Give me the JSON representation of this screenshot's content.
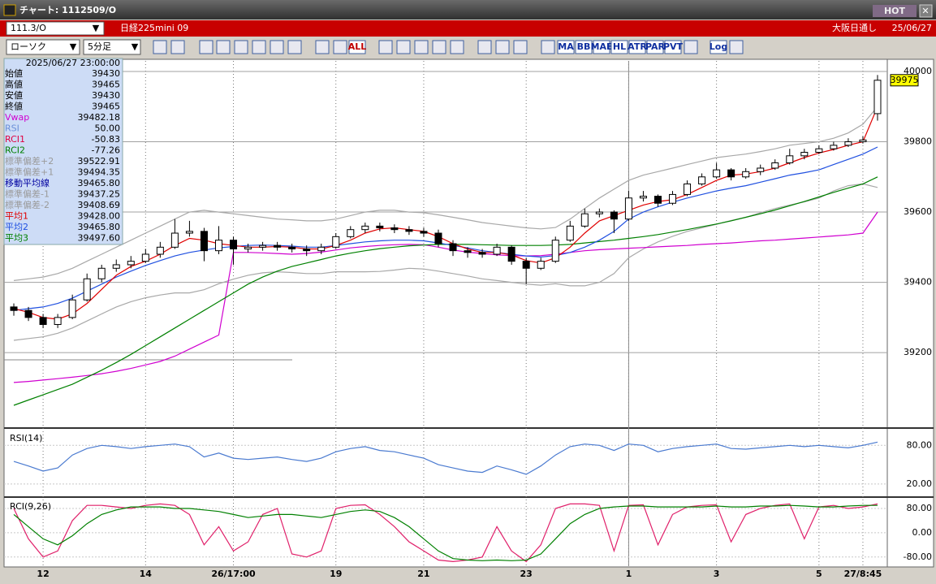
{
  "window": {
    "title": "チャート: 1112509/O",
    "hot": "HOT"
  },
  "header": {
    "symbol": "111.3/O",
    "name": "日経225mini 09",
    "session": "大阪日通し",
    "date": "25/06/27"
  },
  "toolbar": {
    "chart_style": "ローソク",
    "interval": "5分足",
    "labels": [
      "ALL",
      "MA",
      "BB",
      "MAE",
      "HL",
      "ATR",
      "PAR",
      "PVT",
      "Log"
    ]
  },
  "info_panel": {
    "datetime": "2025/06/27 23:00:00",
    "rows": [
      {
        "label": "始値",
        "value": "39430",
        "color": "#000000"
      },
      {
        "label": "高値",
        "value": "39465",
        "color": "#000000"
      },
      {
        "label": "安値",
        "value": "39430",
        "color": "#000000"
      },
      {
        "label": "終値",
        "value": "39465",
        "color": "#000000"
      },
      {
        "label": "Vwap",
        "value": "39482.18",
        "color": "#d000d0"
      },
      {
        "label": "RSI",
        "value": "50.00",
        "color": "#6a8fd8"
      },
      {
        "label": "RCI1",
        "value": "-50.83",
        "color": "#e00040"
      },
      {
        "label": "RCI2",
        "value": "-77.26",
        "color": "#008000"
      },
      {
        "label": "標準偏差+2",
        "value": "39522.91",
        "color": "#9a9a9a"
      },
      {
        "label": "標準偏差+1",
        "value": "39494.35",
        "color": "#9a9a9a"
      },
      {
        "label": "移動平均線",
        "value": "39465.80",
        "color": "#0000a0"
      },
      {
        "label": "標準偏差-1",
        "value": "39437.25",
        "color": "#9a9a9a"
      },
      {
        "label": "標準偏差-2",
        "value": "39408.69",
        "color": "#9a9a9a"
      },
      {
        "label": "平均1",
        "value": "39428.00",
        "color": "#e00000"
      },
      {
        "label": "平均2",
        "value": "39465.80",
        "color": "#2050e0"
      },
      {
        "label": "平均3",
        "value": "39497.60",
        "color": "#008000"
      }
    ]
  },
  "chart_data": [
    {
      "type": "candlestick",
      "categories": [
        null,
        null,
        "12",
        null,
        null,
        null,
        null,
        null,
        null,
        "14",
        null,
        null,
        null,
        null,
        null,
        "26/17:00",
        null,
        null,
        null,
        null,
        null,
        null,
        "19",
        null,
        null,
        null,
        null,
        null,
        "21",
        null,
        null,
        null,
        null,
        null,
        null,
        "23",
        null,
        null,
        null,
        null,
        null,
        null,
        "1",
        null,
        null,
        null,
        null,
        null,
        "3",
        null,
        null,
        null,
        null,
        null,
        null,
        "5",
        null,
        null,
        "27/8:45",
        null
      ],
      "open": [
        39330,
        39320,
        39300,
        39280,
        39300,
        39350,
        39410,
        39440,
        39450,
        39460,
        39480,
        39500,
        39540,
        39545,
        39490,
        39520,
        39495,
        39500,
        39505,
        39500,
        39495,
        39490,
        39500,
        39530,
        39550,
        39560,
        39555,
        39550,
        39545,
        39540,
        39510,
        39490,
        39485,
        39480,
        39500,
        39460,
        39440,
        39460,
        39520,
        39560,
        39595,
        39600,
        39580,
        39640,
        39645,
        39625,
        39650,
        39680,
        39700,
        39720,
        39700,
        39715,
        39725,
        39740,
        39760,
        39770,
        39780,
        39790,
        39800,
        39880
      ],
      "high": [
        39340,
        39330,
        39310,
        39310,
        39365,
        39425,
        39450,
        39465,
        39475,
        39495,
        39515,
        39580,
        39575,
        39555,
        39560,
        39530,
        39510,
        39515,
        39515,
        39510,
        39505,
        39510,
        39540,
        39560,
        39570,
        39570,
        39565,
        39560,
        39555,
        39550,
        39520,
        39500,
        39495,
        39510,
        39505,
        39470,
        39470,
        39530,
        39575,
        39610,
        39610,
        39605,
        39660,
        39660,
        39650,
        39660,
        39690,
        39710,
        39740,
        39725,
        39725,
        39735,
        39750,
        39780,
        39780,
        39790,
        39800,
        39810,
        39815,
        39990
      ],
      "low": [
        39305,
        39290,
        39270,
        39270,
        39295,
        39345,
        39400,
        39430,
        39440,
        39455,
        39470,
        39495,
        39530,
        39460,
        39480,
        39450,
        39485,
        39490,
        39490,
        39485,
        39475,
        39480,
        39495,
        39525,
        39540,
        39545,
        39540,
        39535,
        39530,
        39500,
        39475,
        39470,
        39470,
        39475,
        39450,
        39395,
        39435,
        39455,
        39515,
        39555,
        39585,
        39540,
        39575,
        39630,
        39615,
        39620,
        39645,
        39675,
        39695,
        39690,
        39695,
        39705,
        39720,
        39735,
        39750,
        39765,
        39775,
        39785,
        39795,
        39860
      ],
      "close": [
        39320,
        39300,
        39280,
        39300,
        39350,
        39410,
        39440,
        39450,
        39460,
        39480,
        39500,
        39540,
        39545,
        39490,
        39520,
        39495,
        39500,
        39505,
        39500,
        39495,
        39490,
        39500,
        39530,
        39550,
        39560,
        39555,
        39550,
        39545,
        39540,
        39510,
        39490,
        39485,
        39480,
        39500,
        39460,
        39440,
        39460,
        39520,
        39560,
        39595,
        39600,
        39580,
        39640,
        39645,
        39625,
        39650,
        39680,
        39700,
        39720,
        39700,
        39715,
        39725,
        39740,
        39760,
        39770,
        39780,
        39790,
        39800,
        39805,
        39975
      ],
      "overlays": [
        {
          "color": "#a8a8a8",
          "values": [
            39405,
            39410,
            39415,
            39425,
            39440,
            39460,
            39480,
            39500,
            39520,
            39540,
            39560,
            39580,
            39600,
            39605,
            39600,
            39595,
            39590,
            39585,
            39580,
            39578,
            39575,
            39575,
            39580,
            39590,
            39600,
            39605,
            39605,
            39600,
            39598,
            39592,
            39585,
            39578,
            39570,
            39565,
            39560,
            39555,
            39552,
            39556,
            39580,
            39610,
            39640,
            39665,
            39690,
            39705,
            39715,
            39725,
            39735,
            39745,
            39755,
            39760,
            39765,
            39772,
            39780,
            39790,
            39795,
            39800,
            39810,
            39825,
            39850,
            39900
          ]
        },
        {
          "color": "#a8a8a8",
          "values": [
            39235,
            39240,
            39245,
            39255,
            39270,
            39290,
            39310,
            39330,
            39345,
            39356,
            39364,
            39370,
            39370,
            39379,
            39396,
            39409,
            39420,
            39427,
            39430,
            39428,
            39425,
            39425,
            39430,
            39430,
            39430,
            39431,
            39435,
            39440,
            39438,
            39432,
            39425,
            39418,
            39410,
            39405,
            39400,
            39395,
            39392,
            39396,
            39390,
            39390,
            39400,
            39425,
            39470,
            39495,
            39515,
            39531,
            39545,
            39555,
            39565,
            39576,
            39585,
            39598,
            39610,
            39620,
            39629,
            39640,
            39660,
            39675,
            39680,
            39670
          ]
        },
        {
          "color": "#d000d0",
          "values": [
            39115,
            39118,
            39122,
            39126,
            39130,
            39135,
            39140,
            39147,
            39155,
            39165,
            39175,
            39190,
            39210,
            39230,
            39250,
            39485,
            39485,
            39484,
            39482,
            39480,
            39482,
            39486,
            39492,
            39498,
            39502,
            39505,
            39507,
            39508,
            39507,
            39500,
            39492,
            39486,
            39482,
            39478,
            39476,
            39475,
            39476,
            39480,
            39485,
            39490,
            39493,
            39495,
            39497,
            39499,
            39501,
            39503,
            39505,
            39508,
            39510,
            39512,
            39515,
            39518,
            39520,
            39523,
            39526,
            39529,
            39532,
            39535,
            39540,
            39600
          ]
        },
        {
          "color": "#008000",
          "values": [
            39050,
            39065,
            39080,
            39095,
            39110,
            39130,
            39150,
            39172,
            39195,
            39220,
            39245,
            39270,
            39295,
            39320,
            39345,
            39370,
            39395,
            39415,
            39432,
            39445,
            39455,
            39465,
            39475,
            39483,
            39490,
            39496,
            39500,
            39504,
            39506,
            39508,
            39508,
            39508,
            39507,
            39506,
            39505,
            39505,
            39505,
            39506,
            39508,
            39512,
            39516,
            39520,
            39525,
            39530,
            39536,
            39543,
            39550,
            39558,
            39566,
            39575,
            39585,
            39595,
            39606,
            39618,
            39630,
            39643,
            39656,
            39668,
            39680,
            39700
          ]
        },
        {
          "color": "#2050e0",
          "values": [
            39320,
            39325,
            39330,
            39340,
            39355,
            39375,
            39395,
            39415,
            39432,
            39448,
            39462,
            39475,
            39485,
            39492,
            39498,
            39502,
            39505,
            39506,
            39505,
            39503,
            39500,
            39500,
            39505,
            39510,
            39515,
            39518,
            39520,
            39520,
            39518,
            39512,
            39505,
            39498,
            39490,
            39485,
            39480,
            39475,
            39472,
            39476,
            39485,
            39500,
            39520,
            39545,
            39580,
            39600,
            39615,
            39628,
            39640,
            39650,
            39660,
            39668,
            39675,
            39685,
            39695,
            39705,
            39712,
            39720,
            39735,
            39750,
            39765,
            39785
          ]
        },
        {
          "color": "#e00000",
          "values": [
            39325,
            39315,
            39300,
            39295,
            39310,
            39340,
            39380,
            39420,
            39445,
            39460,
            39480,
            39505,
            39525,
            39520,
            39510,
            39505,
            39500,
            39500,
            39502,
            39500,
            39495,
            39495,
            39505,
            39520,
            39540,
            39552,
            39555,
            39550,
            39545,
            39530,
            39510,
            39495,
            39485,
            39485,
            39478,
            39462,
            39455,
            39470,
            39500,
            39540,
            39575,
            39590,
            39605,
            39620,
            39630,
            39635,
            39650,
            39670,
            39690,
            39705,
            39708,
            39715,
            39725,
            39740,
            39755,
            39768,
            39778,
            39790,
            39800,
            39900
          ]
        }
      ],
      "ylim": [
        38990,
        40030
      ],
      "yticks": [
        39200,
        39400,
        39600,
        39800,
        40000
      ],
      "grid": true
    },
    {
      "type": "line",
      "title": "RSI(14)",
      "series": [
        {
          "color": "#4a7ad0",
          "values": [
            55,
            48,
            40,
            45,
            65,
            75,
            80,
            78,
            75,
            78,
            80,
            82,
            78,
            62,
            68,
            60,
            58,
            60,
            62,
            58,
            55,
            60,
            70,
            75,
            78,
            72,
            70,
            65,
            60,
            50,
            45,
            40,
            38,
            48,
            42,
            35,
            48,
            65,
            78,
            82,
            80,
            72,
            82,
            80,
            70,
            75,
            78,
            80,
            82,
            75,
            74,
            76,
            78,
            80,
            78,
            80,
            78,
            76,
            80,
            85
          ]
        }
      ],
      "ylim": [
        1,
        103
      ],
      "yticks": [
        {
          "value": 80,
          "label": "80.00"
        },
        {
          "value": 20,
          "label": "20.00"
        }
      ],
      "grid": true
    },
    {
      "type": "line",
      "title": "RCI(9,26)",
      "series": [
        {
          "color": "#e0206a",
          "values": [
            80,
            -20,
            -80,
            -60,
            40,
            90,
            90,
            85,
            80,
            90,
            95,
            90,
            60,
            -40,
            20,
            -60,
            -30,
            60,
            80,
            -70,
            -80,
            -60,
            80,
            90,
            92,
            60,
            20,
            -30,
            -60,
            -90,
            -95,
            -90,
            -80,
            20,
            -60,
            -95,
            -40,
            80,
            95,
            95,
            90,
            -60,
            90,
            92,
            -40,
            60,
            85,
            90,
            92,
            -30,
            60,
            80,
            90,
            95,
            -20,
            85,
            90,
            80,
            85,
            95
          ]
        },
        {
          "color": "#008000",
          "values": [
            60,
            20,
            -20,
            -40,
            -10,
            30,
            60,
            75,
            85,
            85,
            85,
            80,
            80,
            75,
            70,
            60,
            50,
            55,
            60,
            60,
            55,
            50,
            60,
            70,
            75,
            70,
            50,
            20,
            -20,
            -60,
            -85,
            -90,
            -92,
            -90,
            -92,
            -90,
            -70,
            -20,
            30,
            60,
            80,
            85,
            88,
            88,
            85,
            85,
            85,
            85,
            88,
            85,
            85,
            88,
            88,
            90,
            88,
            85,
            85,
            88,
            90,
            90
          ]
        }
      ],
      "ylim": [
        -110,
        112
      ],
      "yticks": [
        {
          "value": 80,
          "label": "80.00"
        },
        {
          "value": 0,
          "label": "0.00"
        },
        {
          "value": -80,
          "label": "-80.00"
        }
      ],
      "grid": true
    }
  ]
}
